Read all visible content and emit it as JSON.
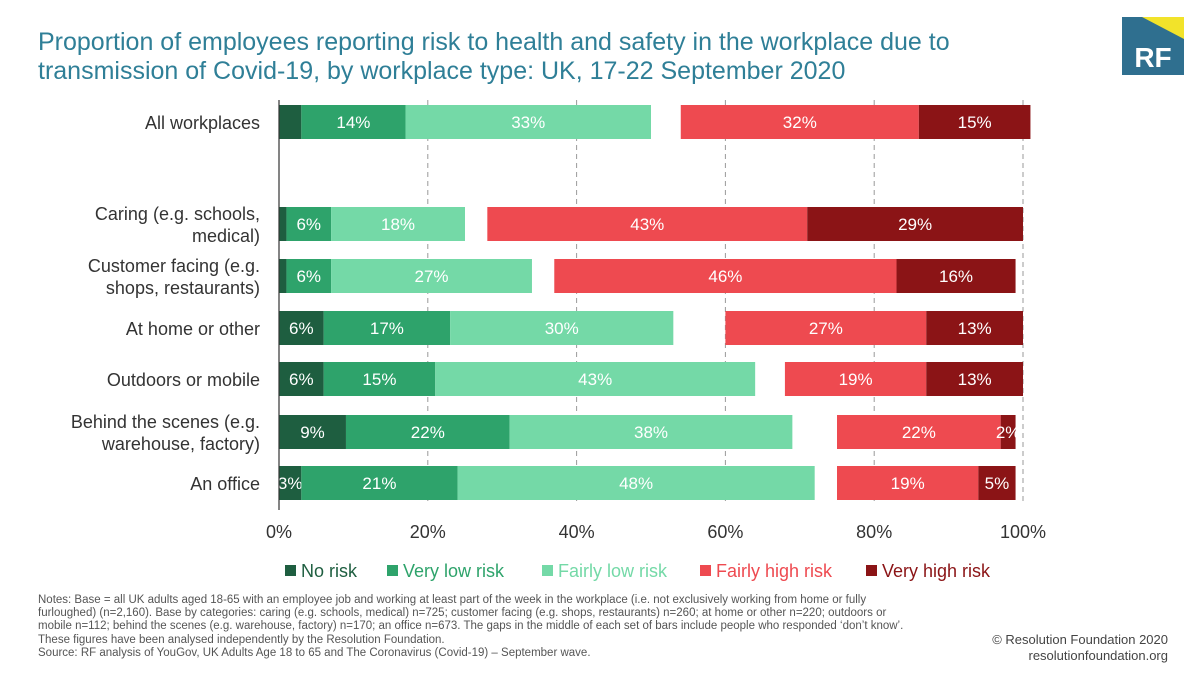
{
  "title_lines": [
    "Proportion of employees reporting risk to health and safety in the workplace due to",
    "transmission of Covid-19, by workplace type: UK, 17-22 September 2020"
  ],
  "logo": {
    "text": "RF",
    "colors": {
      "box": "#2f6f8f",
      "corner": "#f2e32a"
    }
  },
  "chart_data": {
    "type": "bar",
    "orientation": "horizontal",
    "stacked": true,
    "categories": [
      [
        "All workplaces"
      ],
      [
        "Caring (e.g. schools,",
        "medical)"
      ],
      [
        "Customer facing (e.g.",
        "shops, restaurants)"
      ],
      [
        "At home or other"
      ],
      [
        "Outdoors or mobile"
      ],
      [
        "Behind the scenes (e.g.",
        "warehouse, factory)"
      ],
      [
        "An office"
      ]
    ],
    "series": [
      {
        "name": "No risk",
        "color": "#1e5e40",
        "values": [
          3,
          1,
          1,
          6,
          6,
          9,
          3
        ],
        "labels": [
          "",
          "",
          "",
          "6%",
          "6%",
          "9%",
          "3%"
        ]
      },
      {
        "name": "Very low risk",
        "color": "#2ea36b",
        "values": [
          14,
          6,
          6,
          17,
          15,
          22,
          21
        ],
        "labels": [
          "14%",
          "6%",
          "6%",
          "17%",
          "15%",
          "22%",
          "21%"
        ]
      },
      {
        "name": "Fairly low risk",
        "color": "#74d9a7",
        "values": [
          33,
          18,
          27,
          30,
          43,
          38,
          48
        ],
        "labels": [
          "33%",
          "18%",
          "27%",
          "30%",
          "43%",
          "38%",
          "48%"
        ]
      },
      {
        "name": "Don't know gap",
        "color": "#ffffff",
        "values": [
          4,
          3,
          3,
          7,
          4,
          6,
          3
        ],
        "labels": [
          "",
          "",
          "",
          "",
          "",
          "",
          ""
        ]
      },
      {
        "name": "Fairly high risk",
        "color": "#ee4a50",
        "values": [
          32,
          43,
          46,
          27,
          19,
          22,
          19
        ],
        "labels": [
          "32%",
          "43%",
          "46%",
          "27%",
          "19%",
          "22%",
          "19%"
        ]
      },
      {
        "name": "Very high risk",
        "color": "#8b1416",
        "values": [
          15,
          29,
          16,
          13,
          13,
          2,
          5
        ],
        "labels": [
          "15%",
          "29%",
          "16%",
          "13%",
          "13%",
          "2%",
          "5%"
        ]
      }
    ],
    "legend_items": [
      "No risk",
      "Very low risk",
      "Fairly low risk",
      "Fairly high risk",
      "Very high risk"
    ],
    "xlim": [
      0,
      100
    ],
    "xticks": [
      "0%",
      "20%",
      "40%",
      "60%",
      "80%",
      "100%"
    ],
    "grid": "vertical dashed",
    "legend_position": "bottom"
  },
  "notes": [
    "Notes: Base = all UK adults aged 18-65 with an employee job and working at least part of the week in the workplace (i.e. not exclusively working from home or fully",
    "furloughed) (n=2,160). Base by categories: caring (e.g. schools, medical) n=725; customer facing (e.g. shops, restaurants) n=260; at home or other n=220; outdoors or",
    "mobile n=112; behind the scenes (e.g. warehouse, factory) n=170; an office n=673. The gaps in the middle of each set of bars include people who responded ‘don’t know’.",
    "These figures have been analysed independently by the Resolution Foundation.",
    "Source: RF analysis of YouGov, UK Adults Age 18 to 65 and The Coronavirus (Covid-19) – September wave."
  ],
  "credits": [
    "© Resolution Foundation 2020",
    "resolutionfoundation.org"
  ]
}
